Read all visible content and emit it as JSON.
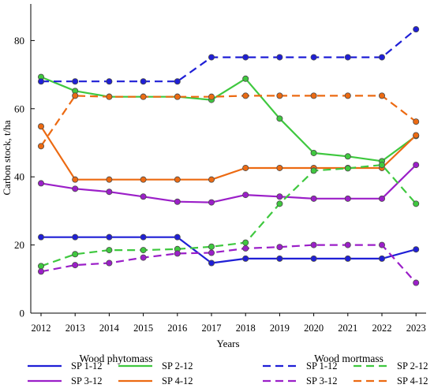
{
  "chart_data": {
    "type": "line",
    "title": "",
    "xlabel": "Years",
    "ylabel": "Carbon stock, t/ha",
    "ylim": [
      0,
      90
    ],
    "yticks": [
      0,
      20,
      40,
      60,
      80
    ],
    "categories": [
      "2012",
      "2013",
      "2014",
      "2015",
      "2016",
      "2017",
      "2018",
      "2019",
      "2020",
      "2021",
      "2022",
      "2023"
    ],
    "grid": false,
    "legend_groups": [
      {
        "title": "Wood phytomass",
        "series": [
          {
            "name": "SP 1-12",
            "color": "#1f1fd6",
            "dash": "solid",
            "values": [
              22.3,
              22.3,
              22.3,
              22.3,
              22.3,
              14.7,
              16.0,
              16.0,
              16.0,
              16.0,
              16.0,
              18.7
            ]
          },
          {
            "name": "SP 2-12",
            "color": "#3fc83f",
            "dash": "solid",
            "values": [
              69.3,
              65.2,
              63.5,
              63.5,
              63.5,
              62.6,
              68.8,
              57.1,
              47.0,
              46.0,
              44.6,
              52.0
            ]
          },
          {
            "name": "SP 3-12",
            "color": "#9b1fc8",
            "dash": "solid",
            "values": [
              38.1,
              36.5,
              35.6,
              34.2,
              32.7,
              32.5,
              34.7,
              34.2,
              33.6,
              33.6,
              33.6,
              43.5
            ]
          },
          {
            "name": "SP 4-12",
            "color": "#ec6a12",
            "dash": "solid",
            "values": [
              54.8,
              39.2,
              39.2,
              39.2,
              39.2,
              39.2,
              42.6,
              42.6,
              42.6,
              42.6,
              42.6,
              52.2
            ]
          }
        ]
      },
      {
        "title": "Wood mortmass",
        "series": [
          {
            "name": "SP 1-12",
            "color": "#1f1fd6",
            "dash": "dashed",
            "values": [
              68.0,
              68.0,
              68.0,
              68.0,
              68.0,
              75.1,
              75.1,
              75.1,
              75.1,
              75.1,
              75.1,
              83.3
            ]
          },
          {
            "name": "SP 2-12",
            "color": "#3fc83f",
            "dash": "dashed",
            "values": [
              13.8,
              17.3,
              18.5,
              18.5,
              18.8,
              19.5,
              20.7,
              32.1,
              41.8,
              42.5,
              43.5,
              32.1
            ]
          },
          {
            "name": "SP 3-12",
            "color": "#9b1fc8",
            "dash": "dashed",
            "values": [
              12.2,
              14.1,
              14.7,
              16.3,
              17.5,
              17.7,
              19.0,
              19.4,
              20.0,
              20.0,
              20.0,
              8.9
            ]
          },
          {
            "name": "SP 4-12",
            "color": "#ec6a12",
            "dash": "dashed",
            "values": [
              49.0,
              63.8,
              63.5,
              63.5,
              63.5,
              63.5,
              63.8,
              63.8,
              63.8,
              63.8,
              63.8,
              56.2
            ]
          }
        ]
      }
    ]
  }
}
